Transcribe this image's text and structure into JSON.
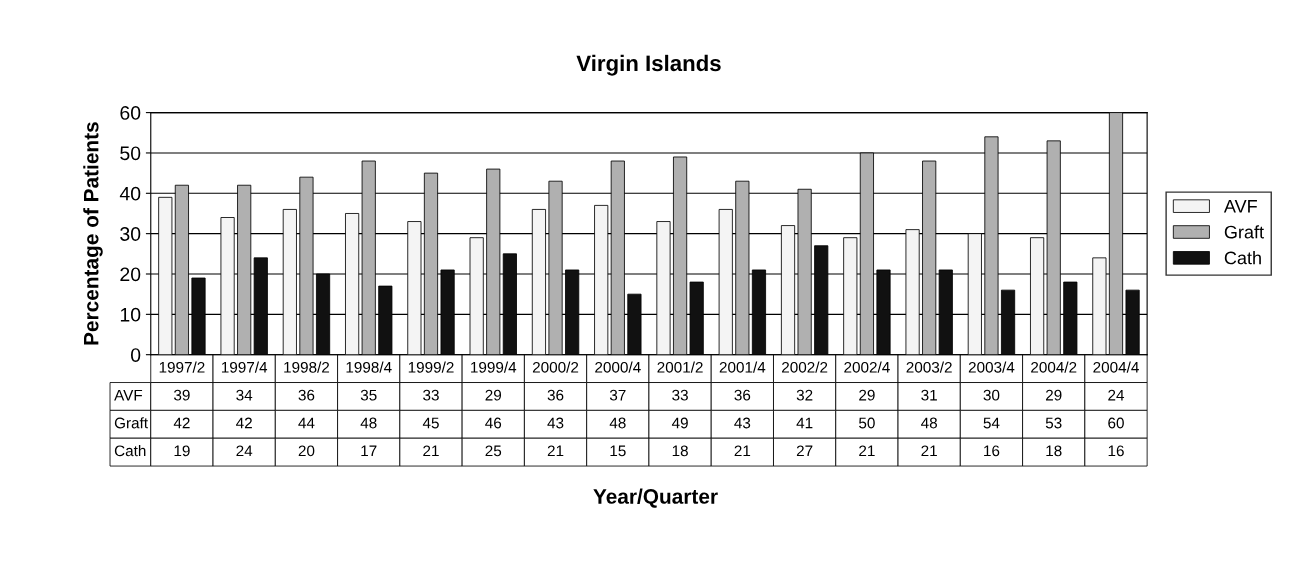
{
  "chart_data": {
    "type": "bar",
    "title": "Virgin Islands",
    "annotations": [
      "Year/Quarter"
    ],
    "ylabel": "Percentage of Patients",
    "categories": [
      "1997/2",
      "1997/4",
      "1998/2",
      "1998/4",
      "1999/2",
      "1999/4",
      "2000/2",
      "2000/4",
      "2001/2",
      "2001/4",
      "2002/2",
      "2002/4",
      "2003/2",
      "2003/4",
      "2004/2",
      "2004/4"
    ],
    "series": [
      {
        "name": "AVF",
        "color": "#f4f4f4",
        "values": [
          39,
          34,
          36,
          35,
          33,
          29,
          36,
          37,
          33,
          36,
          32,
          29,
          31,
          30,
          29,
          24
        ]
      },
      {
        "name": "Graft",
        "color": "#b0b0b0",
        "values": [
          42,
          42,
          44,
          48,
          45,
          46,
          43,
          48,
          49,
          43,
          41,
          50,
          48,
          54,
          53,
          60
        ]
      },
      {
        "name": "Cath",
        "color": "#111111",
        "values": [
          19,
          24,
          20,
          17,
          21,
          25,
          21,
          15,
          18,
          21,
          27,
          21,
          21,
          16,
          18,
          16
        ]
      }
    ],
    "ylim": [
      0,
      60
    ],
    "yticks": [
      0,
      10,
      20,
      30,
      40,
      50,
      60
    ],
    "grid": "y",
    "legend": "right",
    "data_labels": true
  }
}
